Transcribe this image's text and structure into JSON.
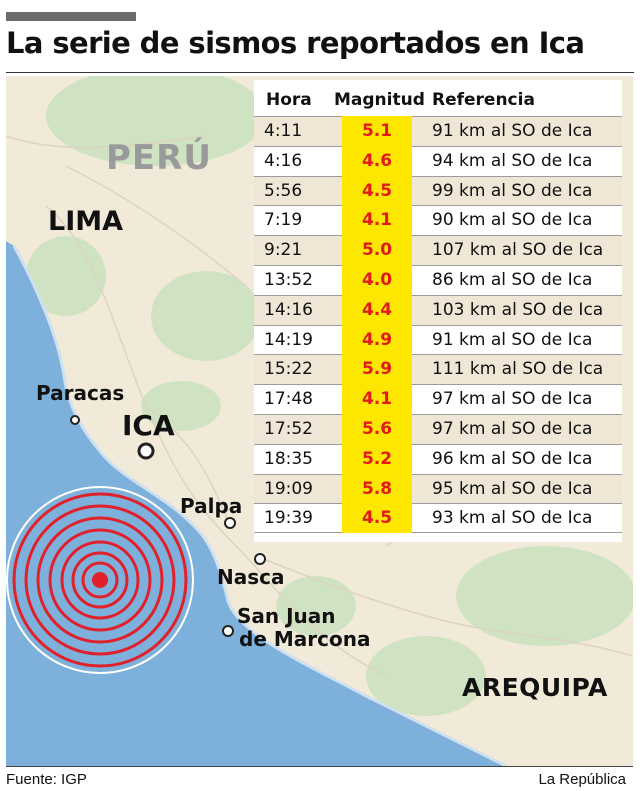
{
  "title": "La serie de sismos reportados en Ica",
  "map": {
    "country_label": "PERÚ",
    "places": {
      "lima": "LIMA",
      "paracas": "Paracas",
      "ica": "ICA",
      "palpa": "Palpa",
      "nasca": "Nasca",
      "marcona_line1": "San Juan",
      "marcona_line2": "de Marcona",
      "arequipa": "AREQUIPA"
    },
    "colors": {
      "ocean": "#7eb0dc",
      "land": "#f1ead9",
      "green": "#cfe3c2",
      "epicenter": "#e0202a",
      "magnitude_cell": "#fde600",
      "magnitude_text": "#e21a1a",
      "row_shade": "#f0e6d6"
    }
  },
  "table": {
    "headers": {
      "hora": "Hora",
      "magnitud": "Magnitud",
      "referencia": "Referencia"
    },
    "rows": [
      {
        "hora": "4:11",
        "magnitud": "5.1",
        "referencia": "91 km al SO de Ica"
      },
      {
        "hora": "4:16",
        "magnitud": "4.6",
        "referencia": "94 km al SO de Ica"
      },
      {
        "hora": "5:56",
        "magnitud": "4.5",
        "referencia": "99 km al SO de Ica"
      },
      {
        "hora": "7:19",
        "magnitud": "4.1",
        "referencia": "90 km al SO de Ica"
      },
      {
        "hora": "9:21",
        "magnitud": "5.0",
        "referencia": "107 km al SO de Ica"
      },
      {
        "hora": "13:52",
        "magnitud": "4.0",
        "referencia": "86 km al SO de Ica"
      },
      {
        "hora": "14:16",
        "magnitud": "4.4",
        "referencia": "103 km al SO de Ica"
      },
      {
        "hora": "14:19",
        "magnitud": "4.9",
        "referencia": "91 km al SO de Ica"
      },
      {
        "hora": "15:22",
        "magnitud": "5.9",
        "referencia": "111 km al SO de Ica"
      },
      {
        "hora": "17:48",
        "magnitud": "4.1",
        "referencia": "97 km al SO de Ica"
      },
      {
        "hora": "17:52",
        "magnitud": "5.6",
        "referencia": "97 km al SO de Ica"
      },
      {
        "hora": "18:35",
        "magnitud": "5.2",
        "referencia": "96 km al SO de Ica"
      },
      {
        "hora": "19:09",
        "magnitud": "5.8",
        "referencia": "95 km al SO de Ica"
      },
      {
        "hora": "19:39",
        "magnitud": "4.5",
        "referencia": "93 km al SO de Ica"
      }
    ]
  },
  "footer": {
    "source": "Fuente: IGP",
    "credit": "La República"
  }
}
